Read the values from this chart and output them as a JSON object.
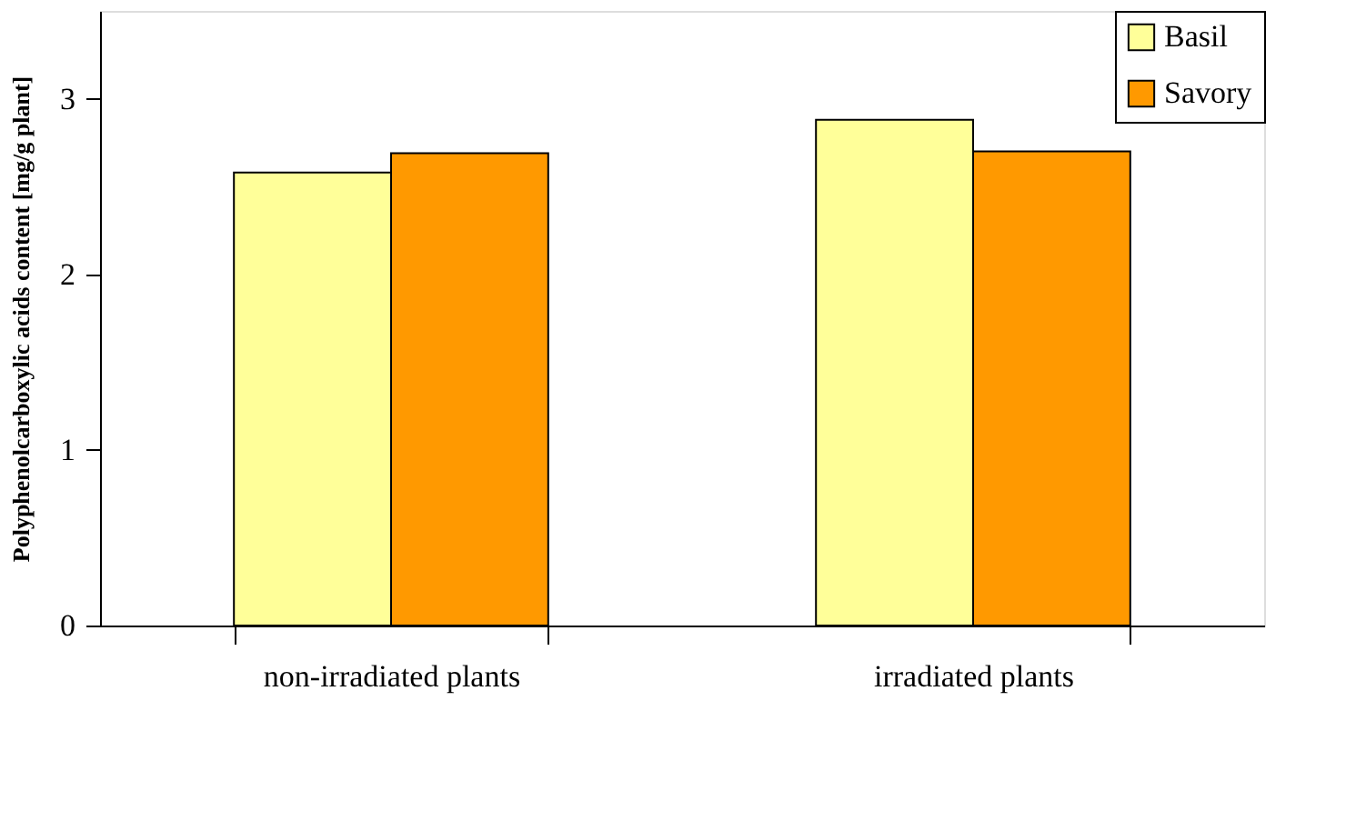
{
  "chart_data": {
    "type": "bar",
    "ylabel": "Polyphenolcarboxylic acids content [mg/g plant]",
    "categories": [
      "non-irradiated plants",
      "irradiated plants"
    ],
    "series": [
      {
        "name": "Basil",
        "color": "#ffff99",
        "values": [
          2.58,
          2.88
        ]
      },
      {
        "name": "Savory",
        "color": "#ff9900",
        "values": [
          2.69,
          2.7
        ]
      }
    ],
    "ylim": [
      0,
      3.5
    ],
    "yticks": [
      0,
      1,
      2,
      3
    ],
    "grid": false,
    "legend": "top right"
  }
}
